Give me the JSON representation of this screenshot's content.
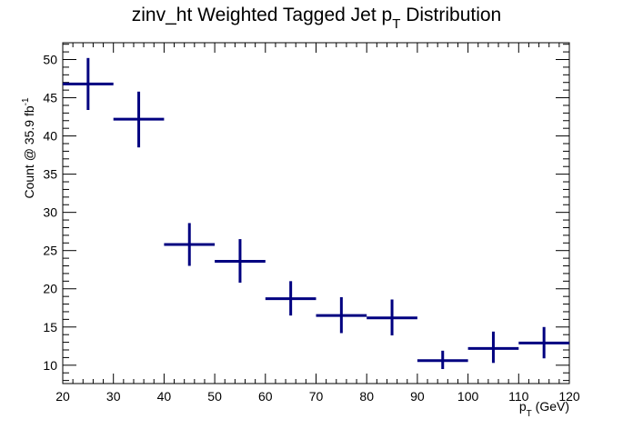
{
  "chart_data": {
    "type": "scatter",
    "title": {
      "main": "zinv_ht Weighted Tagged Jet p",
      "sub": "T",
      "rest": " Distribution"
    },
    "xlabel": {
      "main": "p",
      "sub": "T",
      "rest": " (GeV)"
    },
    "ylabel": {
      "main": "Count @ 35.9 fb",
      "sup": "-1"
    },
    "xlim": [
      20,
      120
    ],
    "ylim": [
      7.6,
      52.2
    ],
    "x_ticks": [
      "20",
      "30",
      "40",
      "50",
      "60",
      "70",
      "80",
      "90",
      "100",
      "110",
      "120"
    ],
    "y_ticks": [
      "10",
      "15",
      "20",
      "25",
      "30",
      "35",
      "40",
      "45",
      "50"
    ],
    "marker_color": "#000080",
    "grid": false,
    "legend": "none",
    "points": [
      {
        "x": 25,
        "xlow": 20,
        "xhigh": 30,
        "y": 46.8,
        "ylow": 43.4,
        "yhigh": 50.2
      },
      {
        "x": 35,
        "xlow": 30,
        "xhigh": 40,
        "y": 42.2,
        "ylow": 38.5,
        "yhigh": 45.8
      },
      {
        "x": 45,
        "xlow": 40,
        "xhigh": 50,
        "y": 25.8,
        "ylow": 23.0,
        "yhigh": 28.6
      },
      {
        "x": 55,
        "xlow": 50,
        "xhigh": 60,
        "y": 23.6,
        "ylow": 20.8,
        "yhigh": 26.5
      },
      {
        "x": 65,
        "xlow": 60,
        "xhigh": 70,
        "y": 18.7,
        "ylow": 16.5,
        "yhigh": 21.0
      },
      {
        "x": 75,
        "xlow": 70,
        "xhigh": 80,
        "y": 16.5,
        "ylow": 14.2,
        "yhigh": 18.9
      },
      {
        "x": 85,
        "xlow": 80,
        "xhigh": 90,
        "y": 16.2,
        "ylow": 13.9,
        "yhigh": 18.6
      },
      {
        "x": 95,
        "xlow": 90,
        "xhigh": 100,
        "y": 10.6,
        "ylow": 9.5,
        "yhigh": 11.9
      },
      {
        "x": 105,
        "xlow": 100,
        "xhigh": 110,
        "y": 12.2,
        "ylow": 10.3,
        "yhigh": 14.4
      },
      {
        "x": 115,
        "xlow": 110,
        "xhigh": 120,
        "y": 12.9,
        "ylow": 10.9,
        "yhigh": 15.0
      }
    ]
  }
}
